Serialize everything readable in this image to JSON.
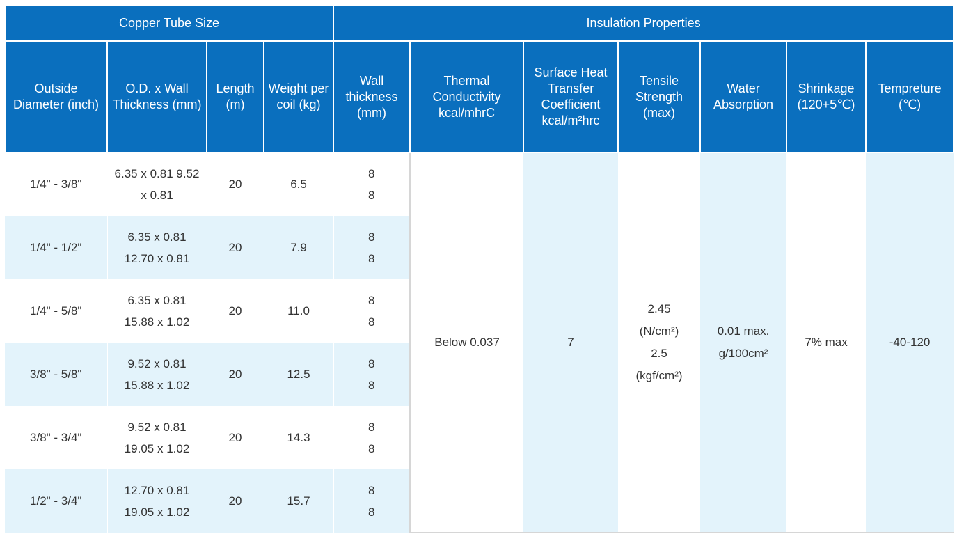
{
  "header": {
    "group_left": "Copper Tube Size",
    "group_right": "Insulation Properties",
    "columns": [
      "Outside Diameter (inch)",
      "O.D. x Wall Thickness (mm)",
      "Length (m)",
      "Weight per coil (kg)",
      "Wall thickness (mm)",
      "Thermal Conductivity kcal/mhrC",
      "Surface Heat Transfer Coefficient kcal/m²hrc",
      "Tensile Strength (max)",
      "Water Absorption",
      "Shrinkage (120+5℃)",
      "Tempreture (℃)"
    ]
  },
  "rows": [
    {
      "outside_diameter": "1/4\" - 3/8\"",
      "od_wall_1": "6.35 x 0.81  9.52",
      "od_wall_2": "x 0.81",
      "length": "20",
      "weight": "6.5",
      "wall_1": "8",
      "wall_2": "8"
    },
    {
      "outside_diameter": "1/4\" - 1/2\"",
      "od_wall_1": "6.35 x 0.81",
      "od_wall_2": "12.70 x 0.81",
      "length": "20",
      "weight": "7.9",
      "wall_1": "8",
      "wall_2": "8"
    },
    {
      "outside_diameter": "1/4\" - 5/8\"",
      "od_wall_1": "6.35 x 0.81",
      "od_wall_2": "15.88 x 1.02",
      "length": "20",
      "weight": "11.0",
      "wall_1": "8",
      "wall_2": "8"
    },
    {
      "outside_diameter": "3/8\" - 5/8\"",
      "od_wall_1": "9.52 x 0.81",
      "od_wall_2": "15.88 x 1.02",
      "length": "20",
      "weight": "12.5",
      "wall_1": "8",
      "wall_2": "8"
    },
    {
      "outside_diameter": "3/8\" - 3/4\"",
      "od_wall_1": "9.52 x 0.81",
      "od_wall_2": "19.05 x 1.02",
      "length": "20",
      "weight": "14.3",
      "wall_1": "8",
      "wall_2": "8"
    },
    {
      "outside_diameter": "1/2\" - 3/4\"",
      "od_wall_1": "12.70 x 0.81",
      "od_wall_2": "19.05 x 1.02",
      "length": "20",
      "weight": "15.7",
      "wall_1": "8",
      "wall_2": "8"
    }
  ],
  "insulation": {
    "thermal_conductivity": "Below 0.037",
    "surface_heat_transfer": "7",
    "tensile_1": "2.45",
    "tensile_2": "(N/cm²)",
    "tensile_3": "2.5",
    "tensile_4": "(kgf/cm²)",
    "water_absorption_1": "0.01 max.",
    "water_absorption_2": "g/100cm²",
    "shrinkage": "7% max",
    "temperature": "-40-120"
  },
  "colors": {
    "header_bg": "#0a6fbe",
    "row_tint": "#e3f3fb",
    "text": "#333333"
  }
}
